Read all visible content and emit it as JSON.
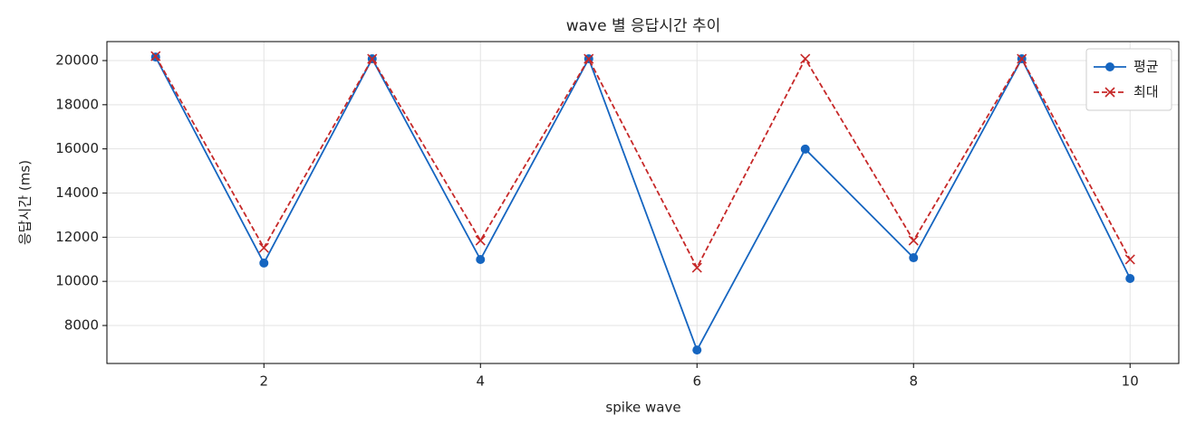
{
  "chart_data": {
    "type": "line",
    "title": "wave 별 응답시간 추이",
    "xlabel": "spike wave",
    "ylabel": "응답시간 (ms)",
    "x": [
      1,
      2,
      3,
      4,
      5,
      6,
      7,
      8,
      9,
      10
    ],
    "series": [
      {
        "name": "평균",
        "color": "#1565c0",
        "marker": "o",
        "linestyle": "solid",
        "values": [
          20160,
          10830,
          20080,
          10990,
          20080,
          6890,
          15990,
          11070,
          20080,
          10130
        ]
      },
      {
        "name": "최대",
        "color": "#c62828",
        "marker": "x",
        "linestyle": "dashed",
        "values": [
          20200,
          11520,
          20080,
          11850,
          20080,
          10620,
          20080,
          11850,
          20080,
          10990
        ]
      }
    ],
    "xlim": [
      0.55,
      10.45
    ],
    "xticks": [
      2,
      4,
      6,
      8,
      10
    ],
    "ylim": [
      6280,
      20860
    ],
    "yticks": [
      8000,
      10000,
      12000,
      14000,
      16000,
      18000,
      20000
    ],
    "grid": true,
    "legend": "upper right"
  }
}
